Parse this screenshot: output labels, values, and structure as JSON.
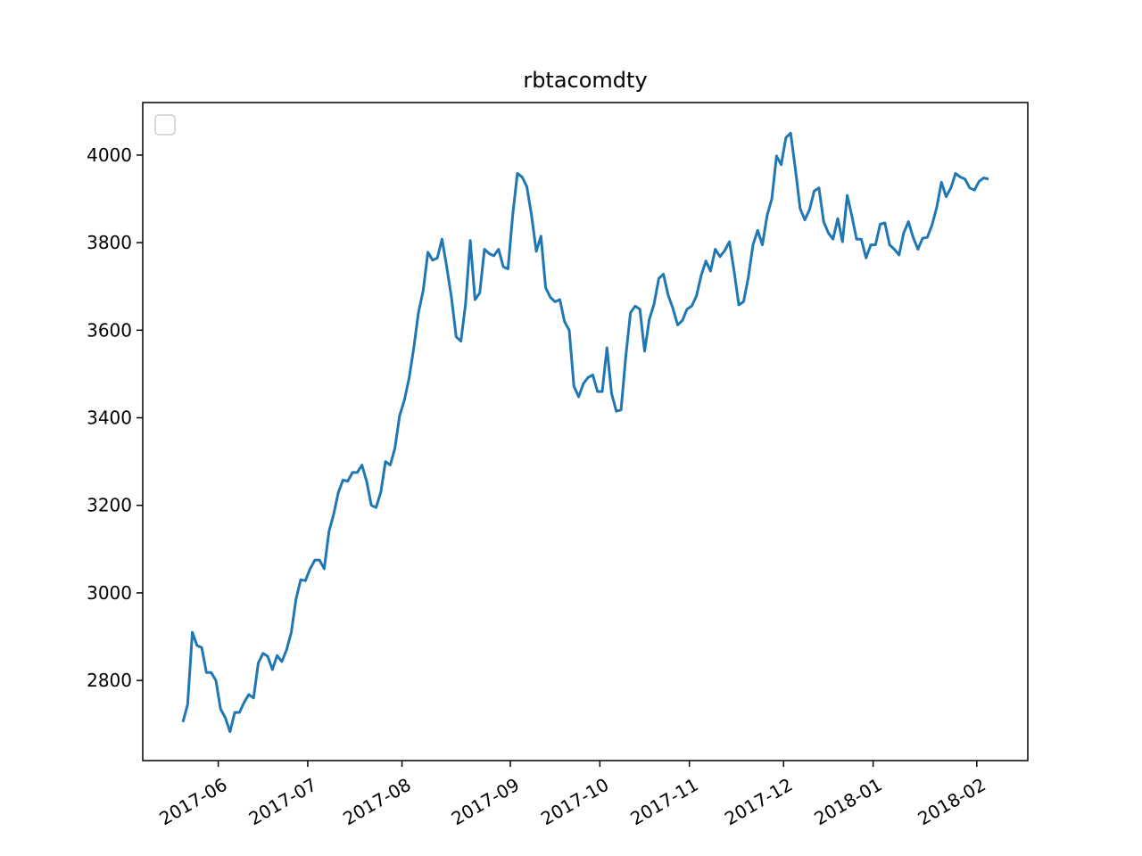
{
  "chart_data": {
    "type": "line",
    "title": "rbtacomdty",
    "x": [
      "2017-05",
      "2017-05",
      "2017-05",
      "2017-05",
      "2017-05",
      "2017-05",
      "2017-05",
      "2017-05",
      "2017-06",
      "2017-06",
      "2017-06",
      "2017-06",
      "2017-06",
      "2017-06",
      "2017-06",
      "2017-06",
      "2017-06",
      "2017-06",
      "2017-06",
      "2017-06",
      "2017-06",
      "2017-06",
      "2017-06",
      "2017-06",
      "2017-06",
      "2017-06",
      "2017-06",
      "2017-07",
      "2017-07",
      "2017-07",
      "2017-07",
      "2017-07",
      "2017-07",
      "2017-07",
      "2017-07",
      "2017-07",
      "2017-07",
      "2017-07",
      "2017-07",
      "2017-07",
      "2017-07",
      "2017-07",
      "2017-07",
      "2017-07",
      "2017-07",
      "2017-07",
      "2017-07",
      "2017-08",
      "2017-08",
      "2017-08",
      "2017-08",
      "2017-08",
      "2017-08",
      "2017-08",
      "2017-08",
      "2017-08",
      "2017-08",
      "2017-08",
      "2017-08",
      "2017-08",
      "2017-08",
      "2017-08",
      "2017-08",
      "2017-08",
      "2017-08",
      "2017-08",
      "2017-08",
      "2017-08",
      "2017-08",
      "2017-08",
      "2017-09",
      "2017-09",
      "2017-09",
      "2017-09",
      "2017-09",
      "2017-09",
      "2017-09",
      "2017-09",
      "2017-09",
      "2017-09",
      "2017-09",
      "2017-09",
      "2017-09",
      "2017-09",
      "2017-09",
      "2017-09",
      "2017-09",
      "2017-09",
      "2017-09",
      "2017-10",
      "2017-10",
      "2017-10",
      "2017-10",
      "2017-10",
      "2017-10",
      "2017-10",
      "2017-10",
      "2017-10",
      "2017-10",
      "2017-10",
      "2017-10",
      "2017-10",
      "2017-10",
      "2017-10",
      "2017-10",
      "2017-10",
      "2017-10",
      "2017-10",
      "2017-11",
      "2017-11",
      "2017-11",
      "2017-11",
      "2017-11",
      "2017-11",
      "2017-11",
      "2017-11",
      "2017-11",
      "2017-11",
      "2017-11",
      "2017-11",
      "2017-11",
      "2017-11",
      "2017-11",
      "2017-11",
      "2017-11",
      "2017-11",
      "2017-11",
      "2017-11",
      "2017-12",
      "2017-12",
      "2017-12",
      "2017-12",
      "2017-12",
      "2017-12",
      "2017-12",
      "2017-12",
      "2017-12",
      "2017-12",
      "2017-12",
      "2017-12",
      "2017-12",
      "2017-12",
      "2017-12",
      "2017-12",
      "2017-12",
      "2017-12",
      "2017-12",
      "2018-01",
      "2018-01",
      "2018-01",
      "2018-01",
      "2018-01",
      "2018-01",
      "2018-01",
      "2018-01",
      "2018-01",
      "2018-01",
      "2018-01",
      "2018-01",
      "2018-01",
      "2018-01",
      "2018-01",
      "2018-01",
      "2018-01",
      "2018-01",
      "2018-01",
      "2018-01",
      "2018-01",
      "2018-01",
      "2018-02",
      "2018-02",
      "2018-02"
    ],
    "series": [
      {
        "color": "#1f77b4",
        "values": [
          2705,
          2745,
          2910,
          2880,
          2875,
          2818,
          2818,
          2800,
          2735,
          2715,
          2683,
          2727,
          2727,
          2750,
          2768,
          2760,
          2840,
          2862,
          2855,
          2825,
          2857,
          2843,
          2870,
          2910,
          2985,
          3030,
          3028,
          3055,
          3075,
          3075,
          3055,
          3140,
          3180,
          3230,
          3258,
          3255,
          3275,
          3275,
          3292,
          3255,
          3200,
          3195,
          3230,
          3300,
          3292,
          3330,
          3405,
          3440,
          3490,
          3560,
          3640,
          3690,
          3778,
          3760,
          3765,
          3808,
          3745,
          3675,
          3585,
          3575,
          3660,
          3805,
          3670,
          3685,
          3785,
          3775,
          3770,
          3785,
          3745,
          3740,
          3862,
          3958,
          3950,
          3928,
          3862,
          3780,
          3815,
          3697,
          3675,
          3665,
          3670,
          3620,
          3600,
          3472,
          3448,
          3478,
          3492,
          3498,
          3460,
          3460,
          3560,
          3455,
          3415,
          3418,
          3540,
          3640,
          3655,
          3648,
          3552,
          3625,
          3660,
          3718,
          3728,
          3680,
          3650,
          3612,
          3622,
          3648,
          3655,
          3678,
          3725,
          3758,
          3735,
          3785,
          3768,
          3782,
          3802,
          3735,
          3658,
          3665,
          3720,
          3795,
          3828,
          3795,
          3862,
          3900,
          3998,
          3978,
          4040,
          4050,
          3968,
          3878,
          3852,
          3875,
          3918,
          3925,
          3848,
          3822,
          3808,
          3855,
          3802,
          3908,
          3860,
          3808,
          3808,
          3765,
          3795,
          3795,
          3842,
          3845,
          3795,
          3785,
          3772,
          3822,
          3848,
          3812,
          3785,
          3810,
          3812,
          3840,
          3880,
          3938,
          3905,
          3925,
          3958,
          3950,
          3945,
          3925,
          3920,
          3940,
          3948,
          3945
        ]
      }
    ],
    "xticks": [
      "2017-06",
      "2017-07",
      "2017-08",
      "2017-09",
      "2017-10",
      "2017-11",
      "2017-12",
      "2018-01",
      "2018-02"
    ],
    "ylim": [
      2617,
      4120
    ],
    "yticks": [
      2800,
      3000,
      3200,
      3400,
      3600,
      3800,
      4000
    ],
    "legend": "upper left"
  }
}
